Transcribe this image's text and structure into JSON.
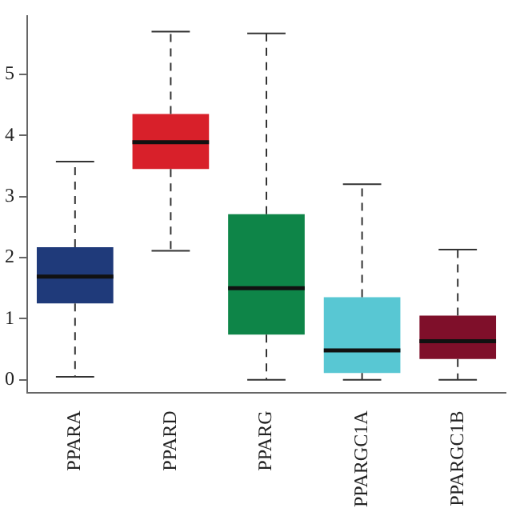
{
  "chart_data": {
    "type": "box",
    "categories": [
      "PPARA",
      "PPARD",
      "PPARG",
      "PPARGC1A",
      "PPARGC1B"
    ],
    "colors": [
      "#1f3a7a",
      "#d8202a",
      "#0e8548",
      "#58c7d3",
      "#7f0f2a"
    ],
    "boxes": [
      {
        "low": 0.05,
        "q1": 1.25,
        "median": 1.69,
        "q3": 2.17,
        "high": 3.57
      },
      {
        "low": 2.11,
        "q1": 3.45,
        "median": 3.89,
        "q3": 4.35,
        "high": 5.7
      },
      {
        "low": 0,
        "q1": 0.74,
        "median": 1.5,
        "q3": 2.71,
        "high": 5.67
      },
      {
        "low": 0,
        "q1": 0.11,
        "median": 0.48,
        "q3": 1.35,
        "high": 3.2
      },
      {
        "low": 0,
        "q1": 0.34,
        "median": 0.63,
        "q3": 1.05,
        "high": 2.13
      }
    ],
    "ylim": [
      -0.22,
      5.95
    ],
    "yticks": [
      0,
      1,
      2,
      3,
      4,
      5
    ],
    "line_style": "dashed"
  }
}
